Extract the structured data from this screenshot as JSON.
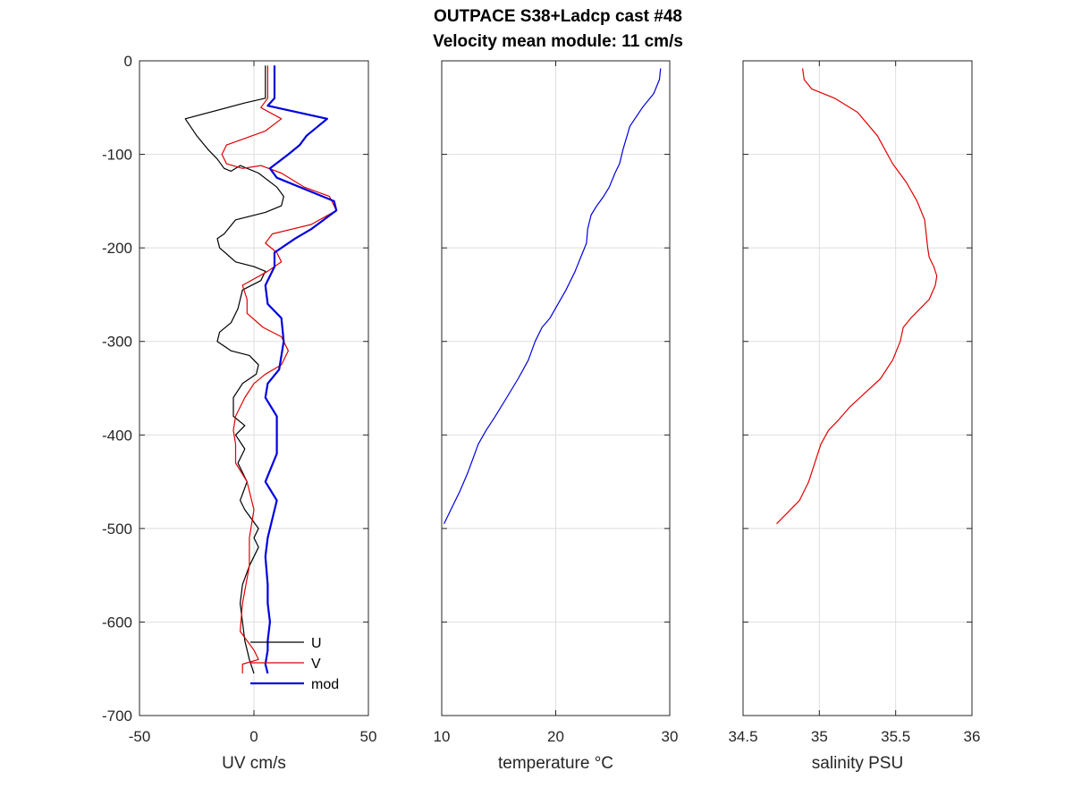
{
  "figure": {
    "title_line1": "OUTPACE S38+Ladcp cast #48",
    "title_line2": "Velocity mean module:  11 cm/s"
  },
  "chart_data": [
    {
      "type": "line",
      "id": "uv",
      "xlabel": "UV cm/s",
      "ylabel": "",
      "xlim": [
        -50,
        50
      ],
      "ylim": [
        -700,
        0
      ],
      "xticks": [
        -50,
        0,
        50
      ],
      "yticks": [
        -700,
        -600,
        -500,
        -400,
        -300,
        -200,
        -100,
        0
      ],
      "grid": true,
      "legend_position": "bottom-center",
      "series": [
        {
          "name": "U",
          "color": "#000000",
          "x": [
            5,
            5,
            5,
            -4,
            -30,
            -25,
            -20,
            -16,
            -13,
            -10,
            -6,
            2,
            10,
            13,
            12,
            5,
            -8,
            -13,
            -16,
            -15,
            -8,
            0,
            5,
            3,
            -5,
            -7,
            -10,
            -15,
            -16,
            -10,
            -2,
            2,
            1,
            -5,
            -9,
            -9,
            -4,
            -8,
            -4,
            -7,
            -3,
            -6,
            -4,
            2,
            0,
            2,
            -2,
            -5,
            -6,
            -5,
            -4,
            -2,
            0
          ],
          "y": [
            -5,
            -20,
            -40,
            -45,
            -62,
            -80,
            -95,
            -105,
            -115,
            -118,
            -112,
            -120,
            -135,
            -145,
            -155,
            -162,
            -170,
            -185,
            -190,
            -200,
            -215,
            -220,
            -225,
            -235,
            -245,
            -265,
            -280,
            -290,
            -300,
            -310,
            -315,
            -325,
            -335,
            -345,
            -360,
            -380,
            -390,
            -400,
            -415,
            -430,
            -450,
            -470,
            -480,
            -500,
            -510,
            -520,
            -540,
            -560,
            -580,
            -600,
            -620,
            -640,
            -655
          ]
        },
        {
          "name": "V",
          "color": "#e00000",
          "x": [
            6,
            6,
            6,
            3,
            12,
            5,
            -12,
            -14,
            -12,
            -5,
            3,
            12,
            22,
            33,
            36,
            25,
            8,
            5,
            10,
            12,
            6,
            -5,
            -3,
            -3,
            4,
            12,
            15,
            12,
            5,
            0,
            -4,
            -8,
            -9,
            -8,
            -8,
            -3,
            0,
            -2,
            -2,
            -5,
            -6,
            0,
            2,
            -5,
            -5,
            -5
          ],
          "y": [
            -5,
            -20,
            -40,
            -50,
            -62,
            -75,
            -90,
            -100,
            -110,
            -115,
            -112,
            -120,
            -135,
            -145,
            -160,
            -175,
            -185,
            -195,
            -205,
            -215,
            -225,
            -240,
            -255,
            -270,
            -285,
            -295,
            -310,
            -325,
            -335,
            -345,
            -360,
            -380,
            -395,
            -410,
            -430,
            -450,
            -480,
            -510,
            -540,
            -580,
            -610,
            -630,
            -640,
            -645,
            -650,
            -655
          ]
        },
        {
          "name": "mod",
          "color": "#0000e0",
          "x": [
            9,
            9,
            9,
            6,
            32,
            23,
            20,
            15,
            7,
            10,
            30,
            35,
            36,
            25,
            18,
            9,
            9,
            5,
            6,
            12,
            13,
            11,
            6,
            5,
            10,
            10,
            5,
            10,
            8,
            6,
            5,
            6,
            6,
            7,
            6,
            6,
            5,
            6
          ],
          "y": [
            -5,
            -20,
            -40,
            -48,
            -62,
            -80,
            -90,
            -100,
            -115,
            -125,
            -145,
            -150,
            -160,
            -180,
            -190,
            -205,
            -220,
            -240,
            -260,
            -275,
            -300,
            -330,
            -345,
            -360,
            -380,
            -420,
            -450,
            -470,
            -490,
            -510,
            -530,
            -560,
            -580,
            -600,
            -620,
            -630,
            -645,
            -655
          ]
        }
      ]
    },
    {
      "type": "line",
      "id": "temperature",
      "xlabel": "temperature °C",
      "ylabel": "",
      "xlim": [
        10,
        30
      ],
      "ylim": [
        -700,
        0
      ],
      "xticks": [
        10,
        20,
        30
      ],
      "yticks": [
        -700,
        -600,
        -500,
        -400,
        -300,
        -200,
        -100,
        0
      ],
      "grid": true,
      "series": [
        {
          "color": "#0000e0",
          "x": [
            29.2,
            29.1,
            28.6,
            27.6,
            26.5,
            25.9,
            25.6,
            25.2,
            24.7,
            24.2,
            23.6,
            23.1,
            22.8,
            22.7,
            22.2,
            21.7,
            20.9,
            20.2,
            19.5,
            18.8,
            18.2,
            17.6,
            16.7,
            15.7,
            14.7,
            13.9,
            13.2,
            12.9,
            12.3,
            11.6,
            10.8,
            10.2
          ],
          "y": [
            -8,
            -20,
            -35,
            -50,
            -70,
            -95,
            -110,
            -120,
            -135,
            -145,
            -155,
            -165,
            -180,
            -195,
            -210,
            -225,
            -245,
            -260,
            -275,
            -285,
            -300,
            -320,
            -340,
            -360,
            -380,
            -395,
            -410,
            -420,
            -440,
            -460,
            -480,
            -495
          ]
        }
      ]
    },
    {
      "type": "line",
      "id": "salinity",
      "xlabel": "salinity PSU",
      "ylabel": "",
      "xlim": [
        34.5,
        36
      ],
      "ylim": [
        -700,
        0
      ],
      "xticks": [
        34.5,
        35,
        35.5,
        36
      ],
      "xtick_labels": [
        "34.5",
        "35",
        "35.5",
        "36"
      ],
      "yticks": [
        -700,
        -600,
        -500,
        -400,
        -300,
        -200,
        -100,
        0
      ],
      "grid": true,
      "series": [
        {
          "color": "#e00000",
          "x": [
            34.89,
            34.9,
            34.95,
            35.1,
            35.25,
            35.38,
            35.48,
            35.57,
            35.64,
            35.69,
            35.7,
            35.71,
            35.72,
            35.75,
            35.77,
            35.76,
            35.72,
            35.66,
            35.6,
            35.55,
            35.53,
            35.48,
            35.4,
            35.3,
            35.2,
            35.12,
            35.06,
            35.01,
            34.97,
            34.93,
            34.87,
            34.78,
            34.72
          ],
          "y": [
            -8,
            -20,
            -30,
            -40,
            -55,
            -80,
            -110,
            -130,
            -150,
            -170,
            -185,
            -200,
            -210,
            -220,
            -230,
            -240,
            -255,
            -265,
            -275,
            -285,
            -300,
            -320,
            -340,
            -355,
            -370,
            -385,
            -395,
            -410,
            -430,
            -450,
            -470,
            -485,
            -495
          ]
        }
      ]
    }
  ]
}
